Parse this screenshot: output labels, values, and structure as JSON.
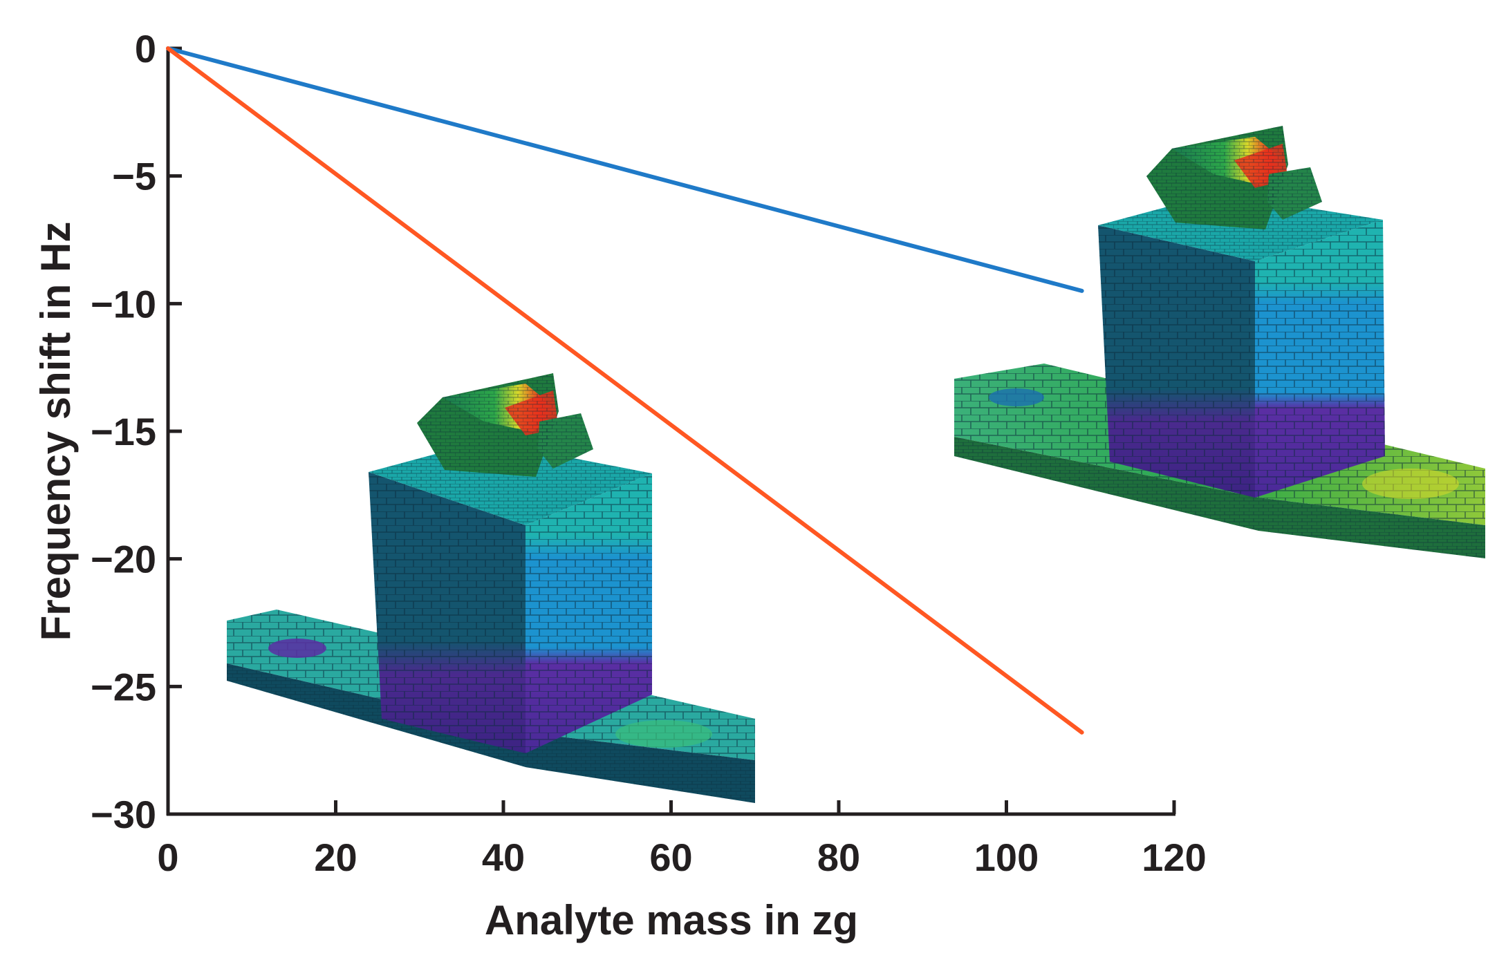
{
  "chart_data": {
    "type": "line",
    "title": "",
    "xlabel": "Analyte mass in zg",
    "ylabel": "Frequency shift in Hz",
    "xlim": [
      0,
      120
    ],
    "ylim": [
      -30,
      0
    ],
    "xticks": [
      0,
      20,
      40,
      60,
      80,
      100,
      120
    ],
    "yticks": [
      0,
      -5,
      -10,
      -15,
      -20,
      -25,
      -30
    ],
    "xtick_labels": [
      "0",
      "20",
      "40",
      "60",
      "80",
      "100",
      "120"
    ],
    "ytick_labels": [
      "0",
      "−5",
      "−10",
      "−15",
      "−20",
      "−25",
      "−30"
    ],
    "grid": false,
    "legend": "none",
    "series": [
      {
        "name": "blue",
        "color": "#1f7ac8",
        "x": [
          0,
          109
        ],
        "y": [
          0,
          -9.5
        ]
      },
      {
        "name": "orange",
        "color": "#ff5722",
        "x": [
          0,
          109
        ],
        "y": [
          0,
          -26.8
        ]
      }
    ],
    "annotations": [
      {
        "name": "fem-mesh-resonator-large",
        "description": "3D finite element mesh of resonator, lower-left inset"
      },
      {
        "name": "fem-mesh-resonator-small",
        "description": "3D finite element mesh of resonator, right inset"
      }
    ]
  }
}
